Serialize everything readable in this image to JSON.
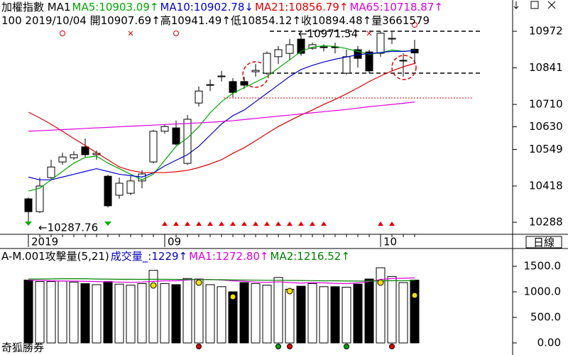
{
  "chart_data": [
    {
      "type": "candlestick",
      "title": "加權指數 MA1",
      "info": "100 2019/10/04 開10907.69↑高10941.49↑低10854.12↑收10894.48↑量3661579",
      "categories": [
        "2019",
        null,
        null,
        null,
        null,
        null,
        null,
        null,
        null,
        null,
        null,
        null,
        "09",
        null,
        null,
        null,
        null,
        null,
        null,
        null,
        null,
        null,
        null,
        null,
        null,
        null,
        null,
        null,
        null,
        null,
        null,
        "10",
        null,
        null,
        null
      ],
      "open": [
        10372,
        10326,
        10448,
        10504,
        10519,
        10558,
        10530,
        10453,
        10385,
        10392,
        10436,
        10504,
        10614,
        10626,
        10499,
        10715,
        10779,
        10809,
        10792,
        10792,
        10827,
        10822,
        10881,
        10893,
        10944,
        10911,
        10914,
        10916,
        10822,
        10906,
        10898,
        10893,
        10944,
        10866,
        10907.69
      ],
      "high": [
        10377,
        10448,
        10512,
        10537,
        10542,
        10588,
        10545,
        10458,
        10448,
        10453,
        10474,
        10619,
        10639,
        10652,
        10672,
        10774,
        10799,
        10830,
        10804,
        10809,
        10855,
        10900,
        10919,
        10944,
        10957,
        10931,
        10925,
        10931,
        10906,
        10919,
        10906,
        10971.54,
        10970,
        10893,
        10941.49
      ],
      "low": [
        10287.76,
        10321,
        10443,
        10494,
        10512,
        10519,
        10512,
        10341,
        10372,
        10385,
        10410,
        10499,
        10606,
        10563,
        10494,
        10703,
        10758,
        10792,
        10736,
        10766,
        10809,
        10817,
        10855,
        10868,
        10884,
        10906,
        10900,
        10893,
        10817,
        10842,
        10822,
        10881,
        10926,
        10809,
        10854.12
      ],
      "close": [
        10326,
        10418,
        10486,
        10522,
        10530,
        10530,
        10535,
        10347,
        10428,
        10436,
        10461,
        10614,
        10631,
        10568,
        10657,
        10758,
        10781,
        10812,
        10753,
        10779,
        10832,
        10893,
        10906,
        10924,
        10893,
        10924,
        10916,
        10914,
        10881,
        10875,
        10830,
        10965,
        10947,
        10868,
        10894.48
      ],
      "series": [
        {
          "legend": "MA5:10903.09↑",
          "color": "#00a800",
          "values": [
            10400,
            10410,
            10440,
            10470,
            10500,
            10520,
            10525,
            10500,
            10480,
            10460,
            10440,
            10460,
            10510,
            10560,
            10590,
            10630,
            10680,
            10720,
            10750,
            10770,
            10790,
            10810,
            10840,
            10870,
            10900,
            10915,
            10920,
            10918,
            10910,
            10900,
            10890,
            10895,
            10905,
            10900,
            10903.09
          ]
        },
        {
          "legend": "MA10:10902.78↓",
          "color": "#0000d0",
          "values": [
            10450,
            10440,
            10440,
            10450,
            10460,
            10470,
            10480,
            10470,
            10460,
            10455,
            10450,
            10465,
            10490,
            10510,
            10530,
            10560,
            10600,
            10640,
            10670,
            10690,
            10720,
            10750,
            10780,
            10810,
            10835,
            10850,
            10862,
            10872,
            10880,
            10888,
            10892,
            10896,
            10900,
            10900,
            10902.78
          ]
        },
        {
          "legend": "MA21:10856.79↑",
          "color": "#e00000",
          "values": [
            10682,
            10662,
            10639,
            10614,
            10588,
            10563,
            10537,
            10512,
            10486,
            10474,
            10466,
            10466,
            10466,
            10469,
            10474,
            10484,
            10497,
            10512,
            10535,
            10555,
            10580,
            10606,
            10631,
            10652,
            10672,
            10690,
            10710,
            10728,
            10748,
            10769,
            10792,
            10812,
            10830,
            10845,
            10856.79
          ]
        },
        {
          "legend": "MA65:10718.87↑",
          "color": "#e000e0",
          "values": [
            10614,
            10616,
            10618,
            10620,
            10622,
            10624,
            10626,
            10628,
            10630,
            10632,
            10634,
            10636,
            10638,
            10640,
            10642,
            10644,
            10646,
            10649,
            10652,
            10656,
            10660,
            10664,
            10668,
            10672,
            10676,
            10680,
            10684,
            10688,
            10692,
            10697,
            10702,
            10706,
            10710,
            10714,
            10718.87
          ]
        }
      ],
      "annotations": [
        "←10971.54",
        "←10287.76"
      ],
      "ylim": [
        10245,
        11084
      ],
      "yticks": [
        10288,
        10418,
        10549,
        10630,
        10710,
        10841,
        10972
      ]
    },
    {
      "type": "bar",
      "title": "A-M.001攻擊量(5,21)",
      "legend": "成交量_:1229↑",
      "color": "#0000c0",
      "values": [
        1230,
        1200,
        1200,
        1210,
        1190,
        1160,
        1140,
        1200,
        1150,
        1130,
        1160,
        1420,
        1160,
        1140,
        1260,
        1250,
        1140,
        1100,
        1000,
        1180,
        1160,
        1130,
        1280,
        1050,
        1110,
        1160,
        1100,
        1100,
        1090,
        1150,
        1250,
        1470,
        1300,
        1180,
        1229
      ],
      "series": [
        {
          "legend": "MA1:1272.80↑",
          "color": "#e000e0",
          "values": [
            1230,
            1225,
            1215,
            1210,
            1210,
            1205,
            1200,
            1195,
            1190,
            1185,
            1190,
            1205,
            1215,
            1215,
            1230,
            1245,
            1240,
            1230,
            1215,
            1205,
            1190,
            1185,
            1195,
            1180,
            1170,
            1180,
            1175,
            1165,
            1160,
            1175,
            1200,
            1240,
            1260,
            1265,
            1272.8
          ]
        },
        {
          "legend": "MA2:1216.52↑",
          "color": "#008000",
          "values": [
            1250,
            1250,
            1252,
            1255,
            1255,
            1255,
            1250,
            1248,
            1245,
            1245,
            1243,
            1245,
            1245,
            1243,
            1240,
            1240,
            1238,
            1236,
            1232,
            1230,
            1228,
            1225,
            1225,
            1222,
            1220,
            1218,
            1215,
            1215,
            1212,
            1210,
            1212,
            1215,
            1218,
            1216,
            1216.52
          ]
        }
      ],
      "ylim": [
        0,
        1847
      ],
      "yticks": [
        {
          "value": 1500,
          "label": "1500.0"
        },
        {
          "value": 1000,
          "label": "1000.0"
        },
        {
          "value": 500,
          "label": "500.0"
        },
        {
          "value": 0,
          "label": "0.00"
        }
      ]
    }
  ],
  "ui": {
    "period": "日線",
    "brand": "奇狐勝券"
  }
}
